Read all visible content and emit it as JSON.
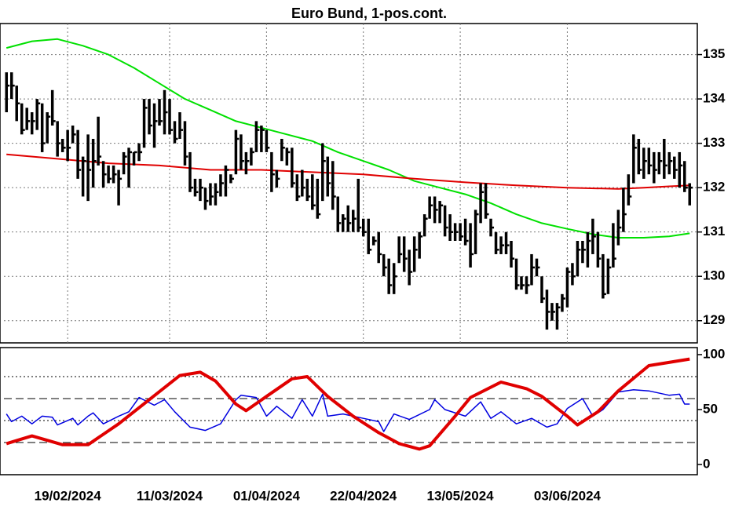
{
  "chart_data": [
    {
      "type": "ohlc",
      "title": "Euro Bund, 1-pos.cont.",
      "color": "#000000",
      "ylim": [
        128.5,
        135.7
      ],
      "yticks": [
        129,
        130,
        131,
        132,
        133,
        134,
        135
      ],
      "grid": true,
      "xlim": [
        -0.5,
        135.5
      ],
      "xticks": [
        {
          "value": 12,
          "label": "19/02/2024"
        },
        {
          "value": 32,
          "label": "11/03/2024"
        },
        {
          "value": 51,
          "label": "01/04/2024"
        },
        {
          "value": 70,
          "label": "22/04/2024"
        },
        {
          "value": 89,
          "label": "13/05/2024"
        },
        {
          "value": 110,
          "label": "03/06/2024"
        }
      ],
      "high": [
        134.6,
        134.6,
        134.3,
        133.9,
        133.8,
        133.7,
        134.0,
        133.9,
        133.7,
        134.2,
        133.5,
        133.1,
        133.3,
        133.4,
        133.3,
        132.7,
        133.2,
        133.1,
        133.6,
        132.6,
        132.5,
        132.5,
        132.4,
        132.8,
        132.9,
        132.8,
        133.0,
        134.0,
        134.0,
        133.9,
        134.0,
        134.2,
        134.0,
        133.5,
        133.7,
        133.5,
        132.8,
        132.2,
        132.2,
        132.0,
        132.1,
        132.1,
        132.3,
        132.5,
        132.3,
        133.3,
        133.2,
        132.8,
        132.9,
        133.5,
        133.4,
        133.3,
        132.8,
        132.4,
        133.1,
        132.9,
        132.9,
        132.3,
        132.4,
        132.2,
        132.3,
        132.2,
        133.0,
        132.7,
        132.6,
        131.8,
        131.4,
        131.6,
        131.5,
        132.2,
        131.3,
        131.3,
        130.9,
        131.0,
        130.5,
        130.4,
        130.3,
        130.9,
        130.9,
        130.6,
        130.9,
        131.0,
        131.4,
        131.8,
        131.8,
        131.7,
        131.6,
        131.4,
        131.2,
        131.2,
        131.3,
        131.2,
        131.5,
        132.1,
        132.1,
        131.3,
        131.0,
        130.9,
        131.0,
        130.8,
        130.4,
        130.0,
        130.0,
        130.5,
        130.4,
        130.0,
        129.7,
        129.4,
        129.4,
        129.6,
        130.2,
        130.3,
        130.8,
        130.8,
        131.0,
        131.3,
        131.0,
        130.5,
        130.4,
        131.2,
        131.5,
        132.0,
        132.3,
        133.2,
        133.1,
        132.9,
        132.9,
        132.8,
        132.8,
        133.1,
        132.8,
        132.7,
        132.8,
        132.6,
        132.1
      ],
      "low": [
        133.7,
        134.0,
        133.5,
        133.2,
        133.3,
        133.2,
        133.3,
        132.8,
        133.0,
        133.4,
        132.7,
        132.8,
        132.6,
        133.0,
        132.2,
        131.8,
        131.7,
        132.0,
        132.5,
        132.0,
        132.1,
        132.1,
        131.6,
        132.3,
        132.0,
        132.5,
        132.6,
        132.9,
        133.2,
        132.9,
        133.4,
        133.2,
        133.2,
        133.0,
        133.1,
        132.5,
        131.9,
        131.8,
        131.7,
        131.5,
        131.6,
        131.6,
        131.8,
        131.8,
        132.1,
        132.3,
        132.4,
        132.3,
        132.5,
        132.8,
        132.8,
        132.8,
        131.9,
        132.0,
        132.6,
        132.5,
        132.0,
        131.7,
        131.8,
        131.7,
        131.5,
        131.3,
        131.7,
        131.8,
        131.5,
        131.0,
        131.0,
        131.0,
        131.0,
        131.0,
        130.9,
        130.5,
        130.7,
        130.3,
        130.0,
        129.6,
        129.6,
        130.3,
        130.1,
        129.8,
        130.1,
        130.4,
        130.9,
        131.3,
        131.2,
        131.2,
        130.9,
        130.8,
        130.8,
        130.8,
        130.7,
        130.2,
        130.5,
        131.2,
        131.3,
        130.9,
        130.5,
        130.5,
        130.5,
        130.2,
        129.7,
        129.7,
        129.6,
        129.8,
        130.0,
        129.4,
        128.8,
        129.0,
        128.8,
        129.2,
        129.3,
        129.8,
        130.0,
        130.3,
        130.2,
        130.5,
        130.2,
        129.5,
        129.6,
        130.2,
        130.7,
        131.0,
        131.6,
        132.1,
        132.3,
        132.2,
        132.3,
        132.1,
        132.3,
        132.2,
        132.3,
        132.2,
        132.0,
        131.9,
        131.6
      ],
      "close": [
        134.3,
        134.3,
        133.9,
        133.3,
        133.5,
        133.5,
        133.9,
        133.0,
        133.6,
        133.5,
        133.0,
        132.9,
        132.9,
        133.2,
        132.4,
        132.6,
        132.4,
        132.6,
        132.7,
        132.3,
        132.2,
        132.3,
        132.2,
        132.7,
        132.8,
        132.8,
        132.8,
        133.8,
        133.4,
        133.5,
        133.5,
        133.7,
        133.3,
        133.1,
        133.3,
        132.7,
        132.0,
        131.9,
        132.0,
        131.7,
        131.8,
        131.9,
        132.1,
        132.4,
        132.2,
        133.1,
        132.6,
        132.6,
        132.8,
        133.3,
        133.3,
        132.9,
        132.3,
        132.2,
        132.9,
        132.8,
        132.1,
        131.8,
        132.0,
        131.8,
        131.6,
        131.4,
        132.6,
        132.1,
        131.8,
        131.2,
        131.3,
        131.2,
        131.3,
        131.1,
        131.0,
        130.6,
        130.8,
        130.5,
        130.2,
        129.8,
        130.0,
        130.5,
        130.4,
        130.1,
        130.6,
        130.9,
        131.3,
        131.6,
        131.5,
        131.6,
        131.1,
        131.0,
        131.0,
        130.9,
        130.8,
        130.5,
        131.4,
        131.9,
        131.4,
        131.1,
        130.6,
        130.7,
        130.7,
        130.4,
        129.8,
        129.8,
        129.8,
        130.2,
        130.2,
        129.5,
        129.2,
        129.2,
        129.3,
        129.5,
        130.1,
        130.0,
        130.6,
        130.6,
        130.8,
        130.9,
        130.4,
        129.6,
        130.2,
        130.4,
        131.1,
        131.4,
        131.8,
        132.9,
        132.4,
        132.6,
        132.5,
        132.4,
        132.6,
        132.5,
        132.6,
        132.4,
        132.5,
        132.0,
        132.0
      ],
      "lines": [
        {
          "color": "#00e000",
          "x": [
            0,
            5,
            10,
            15,
            20,
            25,
            30,
            35,
            40,
            45,
            50,
            55,
            60,
            65,
            70,
            75,
            80,
            85,
            90,
            95,
            100,
            105,
            110,
            115,
            120,
            125,
            130,
            134
          ],
          "values": [
            135.15,
            135.3,
            135.35,
            135.2,
            135.0,
            134.7,
            134.35,
            134.0,
            133.75,
            133.5,
            133.35,
            133.2,
            133.05,
            132.8,
            132.6,
            132.4,
            132.15,
            132.0,
            131.85,
            131.65,
            131.4,
            131.2,
            131.07,
            130.95,
            130.87,
            130.87,
            130.9,
            130.97
          ]
        },
        {
          "color": "#e00000",
          "x": [
            0,
            10,
            20,
            30,
            40,
            50,
            60,
            70,
            80,
            90,
            100,
            110,
            120,
            125,
            130,
            134
          ],
          "values": [
            132.75,
            132.65,
            132.55,
            132.5,
            132.4,
            132.4,
            132.35,
            132.3,
            132.2,
            132.12,
            132.05,
            132.0,
            131.97,
            132.0,
            132.03,
            132.05
          ]
        }
      ]
    },
    {
      "type": "oscillator",
      "ylim": [
        -9.3,
        106.4
      ],
      "yticks": [
        0,
        50,
        100
      ],
      "xlim": [
        -0.5,
        135.5
      ],
      "reference_lines": [
        {
          "value": 80,
          "style": "dotted"
        },
        {
          "value": 60,
          "style": "dashed"
        },
        {
          "value": 40,
          "style": "dotted"
        },
        {
          "value": 20,
          "style": "dashed"
        }
      ],
      "series": [
        {
          "color": "#0000e0",
          "width": 1.5,
          "x": [
            0,
            1,
            3,
            5,
            7,
            9,
            10,
            13,
            14,
            16,
            17,
            19,
            22,
            24,
            26,
            29,
            31,
            33,
            36,
            39,
            42,
            45,
            46,
            49,
            51,
            53,
            56,
            58,
            60,
            62,
            63,
            66,
            70,
            73,
            74,
            76,
            79,
            83,
            84,
            86,
            90,
            93,
            95,
            97,
            100,
            103,
            106,
            108,
            110,
            113,
            115,
            117,
            120,
            123,
            126,
            130,
            132,
            133,
            134
          ],
          "values": [
            46,
            39,
            44,
            37,
            44,
            43,
            36,
            42,
            36,
            44,
            47,
            37,
            44,
            48,
            61,
            54,
            59,
            48,
            34,
            31,
            37,
            59,
            63,
            61,
            44,
            53,
            42,
            59,
            44,
            64,
            44,
            46,
            42,
            39,
            30,
            46,
            41,
            50,
            59,
            50,
            44,
            57,
            42,
            48,
            37,
            42,
            34,
            37,
            51,
            60,
            44,
            50,
            66,
            68,
            67,
            63,
            64,
            55,
            55
          ]
        },
        {
          "color": "#e00000",
          "width": 4,
          "x": [
            0,
            5,
            11,
            16,
            22,
            28,
            34,
            38,
            41,
            45,
            47,
            51,
            56,
            59,
            63,
            68,
            73,
            77,
            81,
            83,
            88,
            91,
            97,
            102,
            105,
            110,
            112,
            116,
            120,
            126,
            134
          ],
          "values": [
            19,
            26,
            18,
            18,
            37,
            59,
            81,
            84,
            76,
            55,
            49,
            62,
            78,
            80,
            62,
            44,
            29,
            19,
            14,
            17,
            44,
            61,
            75,
            69,
            62,
            44,
            36,
            48,
            67,
            90,
            96
          ]
        }
      ]
    }
  ]
}
